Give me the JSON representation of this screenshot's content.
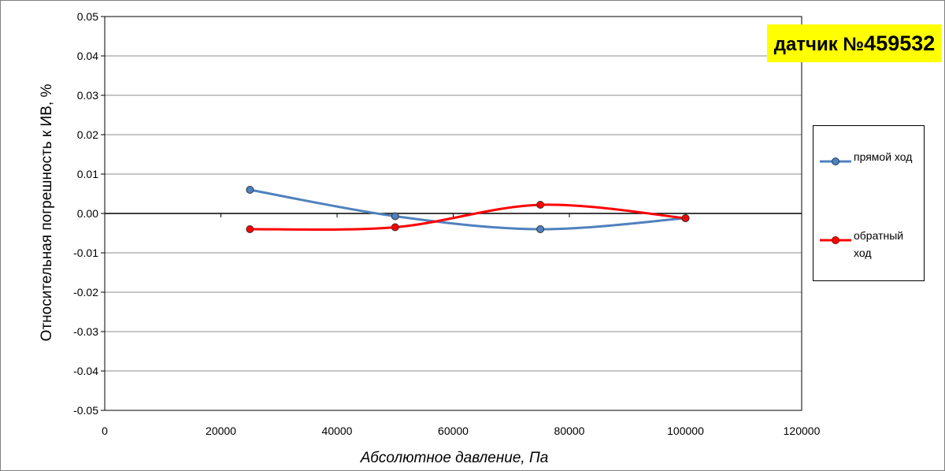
{
  "badge": {
    "prefix": "датчик №",
    "number": "459532"
  },
  "chart_data": {
    "type": "line",
    "title": "",
    "xlabel": "Абсолютное давление, Па",
    "ylabel": "Относительная погрешность к ИВ, %",
    "xlim": [
      0,
      120000
    ],
    "ylim": [
      -0.05,
      0.05
    ],
    "xticks": [
      0,
      20000,
      40000,
      60000,
      80000,
      100000,
      120000
    ],
    "xtick_labels": [
      "0",
      "20000",
      "40000",
      "60000",
      "80000",
      "100000",
      "120000"
    ],
    "yticks": [
      0.05,
      0.04,
      0.03,
      0.02,
      0.01,
      0.0,
      -0.01,
      -0.02,
      -0.03,
      -0.04,
      -0.05
    ],
    "ytick_labels": [
      "0.05",
      "0.04",
      "0.03",
      "0.02",
      "0.01",
      "0.00",
      "-0.01",
      "-0.02",
      "-0.03",
      "-0.04",
      "-0.05"
    ],
    "grid": "horizontal",
    "legend_position": "right",
    "smooth": true,
    "series": [
      {
        "name": "прямой ход",
        "color": "#4f81bd",
        "marker_fill": "#4f81bd",
        "x": [
          25000,
          50000,
          75000,
          100000
        ],
        "y": [
          0.006,
          -0.0007,
          -0.004,
          -0.0012
        ]
      },
      {
        "name": "обратный ход",
        "color": "#ff0000",
        "marker_fill": "#ff0000",
        "x": [
          25000,
          50000,
          75000,
          100000
        ],
        "y": [
          -0.004,
          -0.0035,
          0.0022,
          -0.0012
        ]
      }
    ]
  }
}
